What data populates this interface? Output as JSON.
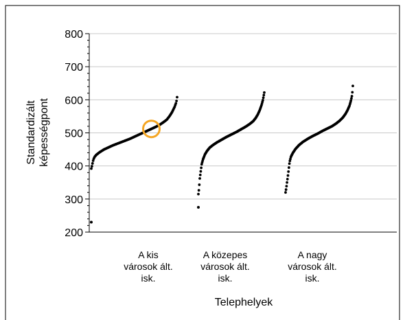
{
  "chart_data": {
    "type": "scatter",
    "title": "",
    "xlabel": "Telephelyek",
    "ylabel_lines": [
      "Standardizált",
      "képességpont"
    ],
    "ylim": [
      200,
      800
    ],
    "yticks": [
      200,
      300,
      400,
      500,
      600,
      700,
      800
    ],
    "grid": true,
    "categories": [
      [
        "A kis",
        "városok ált.",
        "isk."
      ],
      [
        "A közepes",
        "városok ált.",
        "isk."
      ],
      [
        "A nagy",
        "városok ált.",
        "isk."
      ]
    ],
    "series": [
      {
        "category": 0,
        "outliers": [
          [
            0.0,
            230
          ]
        ],
        "points": [
          [
            0.0,
            392
          ],
          [
            0.004,
            396
          ],
          [
            0.01,
            402
          ],
          [
            0.016,
            410
          ],
          [
            0.025,
            420
          ],
          [
            0.04,
            428
          ],
          [
            0.06,
            434
          ],
          [
            0.08,
            438
          ],
          [
            0.1,
            442
          ],
          [
            0.15,
            450
          ],
          [
            0.2,
            456
          ],
          [
            0.25,
            462
          ],
          [
            0.3,
            467
          ],
          [
            0.35,
            472
          ],
          [
            0.4,
            477
          ],
          [
            0.45,
            482
          ],
          [
            0.5,
            488
          ],
          [
            0.55,
            494
          ],
          [
            0.6,
            500
          ],
          [
            0.65,
            506
          ],
          [
            0.7,
            512
          ],
          [
            0.75,
            518
          ],
          [
            0.8,
            525
          ],
          [
            0.84,
            532
          ],
          [
            0.88,
            540
          ],
          [
            0.91,
            550
          ],
          [
            0.94,
            562
          ],
          [
            0.97,
            578
          ],
          [
            0.99,
            592
          ],
          [
            1.0,
            608
          ]
        ],
        "highlight_value": 512,
        "highlight_position": 0.7,
        "highlight_color": "#f5a623"
      },
      {
        "category": 1,
        "outliers": [
          [
            0.0,
            275
          ]
        ],
        "points": [
          [
            0.0,
            315
          ],
          [
            0.005,
            322
          ],
          [
            0.01,
            332
          ],
          [
            0.015,
            345
          ],
          [
            0.02,
            360
          ],
          [
            0.03,
            375
          ],
          [
            0.04,
            390
          ],
          [
            0.05,
            405
          ],
          [
            0.07,
            420
          ],
          [
            0.1,
            435
          ],
          [
            0.13,
            445
          ],
          [
            0.17,
            455
          ],
          [
            0.22,
            463
          ],
          [
            0.28,
            471
          ],
          [
            0.35,
            479
          ],
          [
            0.42,
            487
          ],
          [
            0.5,
            495
          ],
          [
            0.58,
            503
          ],
          [
            0.65,
            511
          ],
          [
            0.72,
            519
          ],
          [
            0.78,
            527
          ],
          [
            0.83,
            535
          ],
          [
            0.87,
            545
          ],
          [
            0.9,
            555
          ],
          [
            0.93,
            568
          ],
          [
            0.96,
            585
          ],
          [
            0.98,
            600
          ],
          [
            1.0,
            622
          ]
        ]
      },
      {
        "category": 2,
        "outliers": [],
        "points": [
          [
            0.0,
            320
          ],
          [
            0.01,
            332
          ],
          [
            0.02,
            348
          ],
          [
            0.03,
            362
          ],
          [
            0.04,
            378
          ],
          [
            0.05,
            395
          ],
          [
            0.06,
            412
          ],
          [
            0.08,
            428
          ],
          [
            0.11,
            440
          ],
          [
            0.15,
            452
          ],
          [
            0.2,
            463
          ],
          [
            0.26,
            473
          ],
          [
            0.33,
            482
          ],
          [
            0.4,
            490
          ],
          [
            0.48,
            498
          ],
          [
            0.55,
            506
          ],
          [
            0.62,
            513
          ],
          [
            0.69,
            520
          ],
          [
            0.75,
            528
          ],
          [
            0.8,
            536
          ],
          [
            0.85,
            546
          ],
          [
            0.89,
            557
          ],
          [
            0.92,
            568
          ],
          [
            0.95,
            582
          ],
          [
            0.97,
            596
          ],
          [
            0.99,
            615
          ],
          [
            1.0,
            642
          ]
        ]
      }
    ],
    "point_color": "#000000"
  }
}
